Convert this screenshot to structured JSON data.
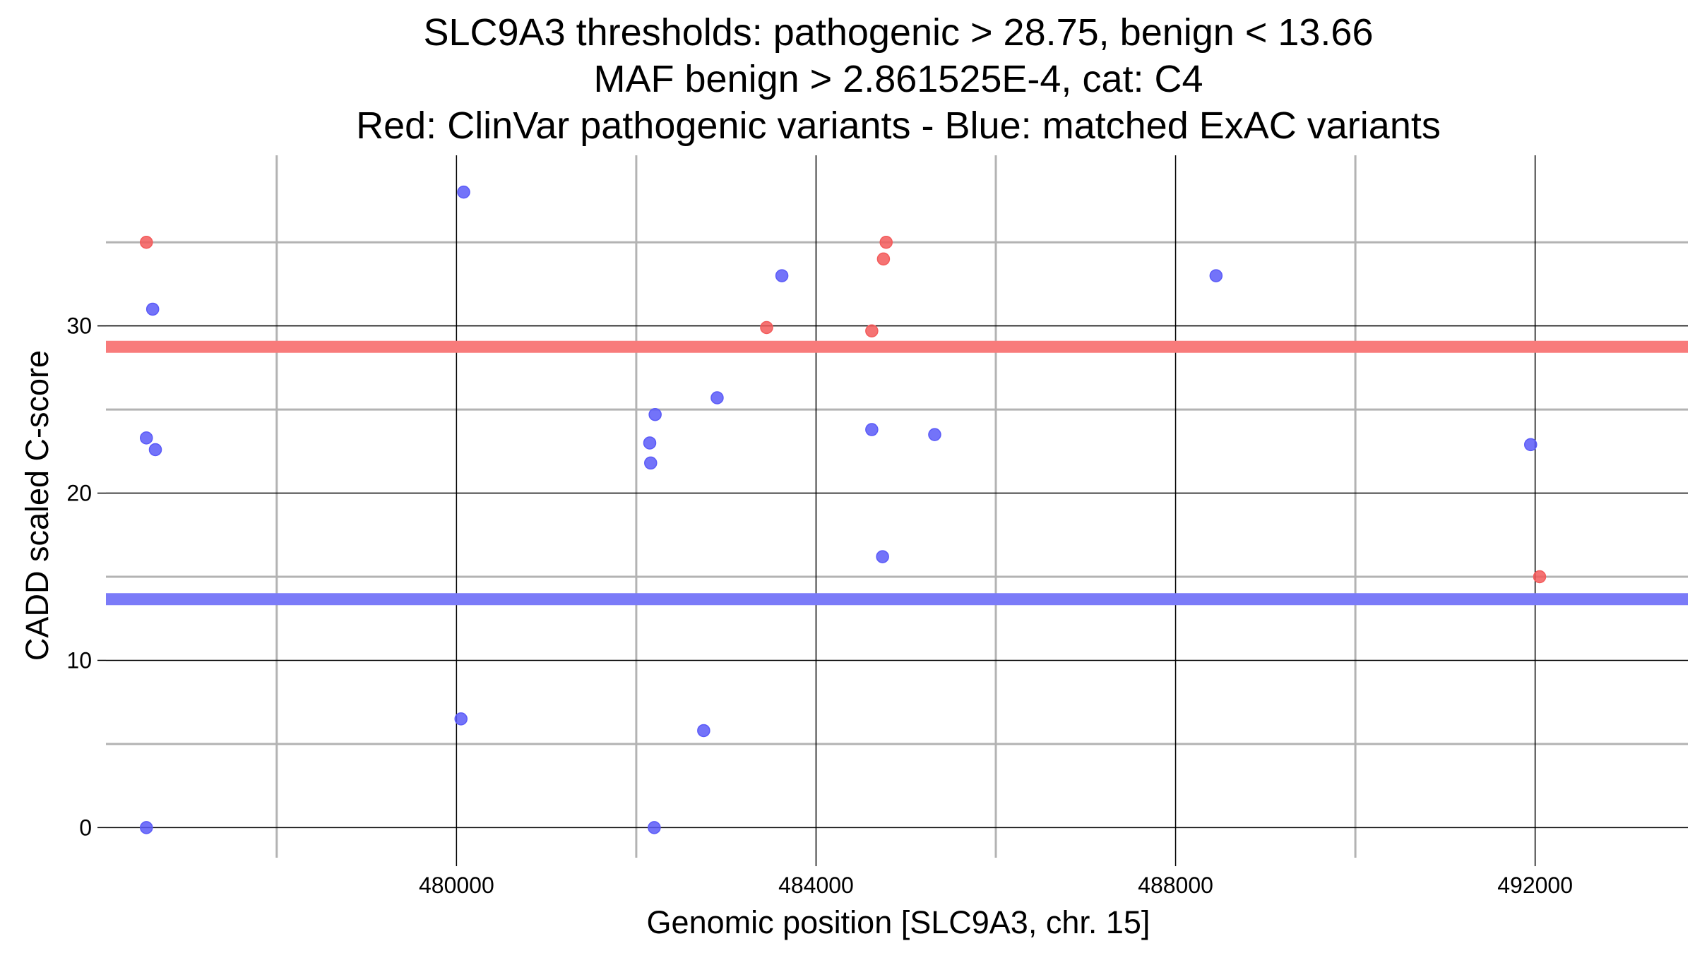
{
  "chart_data": {
    "type": "scatter",
    "title_lines": [
      "SLC9A3 thresholds: pathogenic > 28.75, benign < 13.66",
      "MAF benign > 2.861525E-4, cat: C4",
      "Red: ClinVar pathogenic variants - Blue: matched ExAC variants"
    ],
    "xlabel": "Genomic position [SLC9A3, chr. 15]",
    "ylabel": "CADD scaled C-score",
    "xlim": [
      476100,
      493700
    ],
    "ylim": [
      -1.8,
      40.2
    ],
    "x_ticks": [
      480000,
      484000,
      488000,
      492000
    ],
    "x_minor_ticks": [
      478000,
      482000,
      486000,
      490000
    ],
    "y_ticks": [
      0,
      10,
      20,
      30
    ],
    "y_minor_ticks": [
      5,
      15,
      25,
      35
    ],
    "grid": true,
    "colors": {
      "pathogenic": "#f35b5b",
      "benign": "#5b5bf8",
      "threshold_pathogenic": "#f87b7b",
      "threshold_benign": "#7b7bf8"
    },
    "thresholds": [
      {
        "name": "pathogenic",
        "value": 28.75
      },
      {
        "name": "benign",
        "value": 13.66
      }
    ],
    "series": [
      {
        "key": "pathogenic",
        "points": [
          [
            476550,
            35
          ],
          [
            483450,
            29.9
          ],
          [
            484620,
            29.7
          ],
          [
            484750,
            34
          ],
          [
            484780,
            35
          ],
          [
            492050,
            15
          ]
        ]
      },
      {
        "key": "benign",
        "points": [
          [
            476550,
            0
          ],
          [
            476550,
            23.3
          ],
          [
            476620,
            31
          ],
          [
            476650,
            22.6
          ],
          [
            480050,
            6.5
          ],
          [
            480080,
            38
          ],
          [
            482150,
            23
          ],
          [
            482160,
            21.8
          ],
          [
            482200,
            0
          ],
          [
            482210,
            24.7
          ],
          [
            482750,
            5.8
          ],
          [
            482900,
            25.7
          ],
          [
            483620,
            33
          ],
          [
            484620,
            23.8
          ],
          [
            484740,
            16.2
          ],
          [
            485320,
            23.5
          ],
          [
            488450,
            33
          ],
          [
            491950,
            22.9
          ]
        ]
      }
    ]
  }
}
